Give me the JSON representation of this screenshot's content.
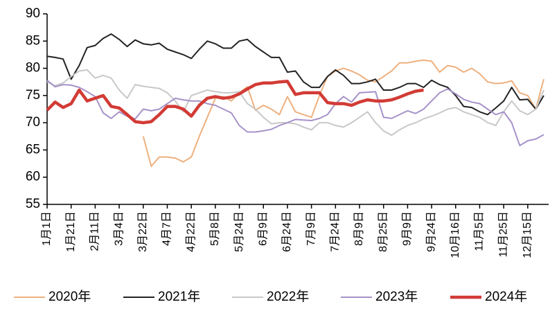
{
  "chart_data": {
    "type": "line",
    "categories": [
      "1月1日",
      null,
      null,
      "1月21日",
      null,
      null,
      "2月11日",
      null,
      null,
      "3月4日",
      null,
      null,
      "3月22日",
      null,
      null,
      "4月7日",
      null,
      null,
      "4月22日",
      null,
      null,
      "5月8日",
      null,
      null,
      "5月24日",
      null,
      null,
      "6月9日",
      null,
      null,
      "6月24日",
      null,
      null,
      "7月9日",
      null,
      null,
      "7月24日",
      null,
      null,
      "8月9日",
      null,
      null,
      "8月25日",
      null,
      null,
      "9月9日",
      null,
      null,
      "9月24日",
      null,
      null,
      "10月16日",
      null,
      null,
      "11月5日",
      null,
      null,
      "11月25日",
      null,
      null,
      "12月15日",
      null,
      null
    ],
    "ylim": [
      55,
      90
    ],
    "yticks": [
      55,
      60,
      65,
      70,
      75,
      80,
      85,
      90
    ],
    "series": [
      {
        "name": "2020年",
        "color": "#eeb07e",
        "width": 2,
        "values": [
          null,
          null,
          null,
          null,
          null,
          null,
          null,
          null,
          null,
          null,
          null,
          null,
          67.5,
          62,
          63.7,
          63.7,
          63.5,
          62.8,
          63.7,
          67.5,
          71,
          74.5,
          74.8,
          74,
          75.5,
          76.6,
          72.3,
          73.2,
          72.5,
          71.5,
          74.8,
          72,
          71.5,
          71,
          75,
          78.5,
          79.5,
          80,
          79.5,
          78.8,
          77.8,
          77.5,
          78.5,
          79.5,
          81,
          81,
          81.3,
          81.5,
          81.3,
          79.3,
          80.5,
          80.2,
          79.3,
          80,
          79,
          77.5,
          77.2,
          77.3,
          77.7,
          75.5,
          75,
          72.5,
          78
        ]
      },
      {
        "name": "2021年",
        "color": "#222222",
        "width": 2,
        "values": [
          82.2,
          82,
          81.7,
          78,
          80.5,
          83.8,
          84.2,
          85.5,
          86.3,
          85.3,
          84,
          85.2,
          84.5,
          84.3,
          84.6,
          83.5,
          83,
          82.5,
          81.8,
          83.5,
          85,
          84.5,
          83.7,
          83.7,
          85,
          85.3,
          84,
          83,
          82,
          82,
          79.3,
          79.5,
          77.5,
          76.5,
          76.5,
          78.5,
          79.7,
          78.7,
          77.2,
          77.2,
          77.5,
          78,
          76,
          76,
          76.5,
          77.2,
          77.2,
          76.5,
          77.8,
          77,
          76.5,
          75,
          73,
          72.8,
          72,
          71.5,
          72.7,
          74,
          76.5,
          74.2,
          74.3,
          72.5,
          75
        ]
      },
      {
        "name": "2022年",
        "color": "#c8c8c8",
        "width": 2,
        "values": [
          77.5,
          76.8,
          77.3,
          78.5,
          79.5,
          79.7,
          78.2,
          78.7,
          78.2,
          76,
          74.5,
          77,
          76.7,
          76.5,
          76.3,
          75.5,
          74,
          72,
          75,
          75.5,
          76,
          75.7,
          75.5,
          75.5,
          75.7,
          73.5,
          72.5,
          71,
          69.8,
          70,
          70,
          69.8,
          69.2,
          68.7,
          70,
          70,
          69.5,
          69.2,
          70,
          71,
          72,
          70,
          68.5,
          67.7,
          68.7,
          69.5,
          70,
          70.7,
          71.2,
          71.8,
          72.5,
          72.8,
          72,
          71.5,
          71,
          70,
          69.5,
          72,
          74,
          72.2,
          71.5,
          72.5,
          76
        ]
      },
      {
        "name": "2023年",
        "color": "#a692c8",
        "width": 2,
        "values": [
          77.8,
          76.6,
          77,
          76.9,
          76.5,
          75.7,
          74.8,
          71.8,
          70.8,
          72,
          71.2,
          70.7,
          72.5,
          72.2,
          72.5,
          73.5,
          74.5,
          74.2,
          74,
          74,
          73.5,
          73.2,
          72.5,
          71.8,
          69.5,
          68.3,
          68.3,
          68.5,
          68.8,
          69.5,
          70,
          70.6,
          70.5,
          70.4,
          70.8,
          71.5,
          73.5,
          74.8,
          73.8,
          75.5,
          75.6,
          75.7,
          71,
          70.8,
          71.5,
          72.2,
          71.7,
          72.5,
          74,
          75.5,
          76.2,
          75.3,
          74.3,
          73.8,
          73.5,
          72.5,
          71.5,
          72,
          70,
          65.8,
          66.7,
          67,
          67.8
        ]
      },
      {
        "name": "2024年",
        "color": "#d23b35",
        "width": 4.5,
        "values": [
          72.3,
          73.8,
          72.8,
          73.5,
          76,
          74,
          74.5,
          75,
          73,
          72.7,
          71.5,
          70.2,
          70,
          70.2,
          71.5,
          73,
          73,
          72.5,
          71.2,
          73.2,
          74.5,
          74.8,
          74.5,
          74.7,
          75.3,
          76.2,
          77,
          77.3,
          77.3,
          77.5,
          77.6,
          75.2,
          75.5,
          75.5,
          75.5,
          73.7,
          73.5,
          73.5,
          73.2,
          73.8,
          74.2,
          74,
          74,
          74.2,
          74.7,
          75.3,
          75.8,
          76,
          null,
          null,
          null,
          null,
          null,
          null,
          null,
          null,
          null,
          null,
          null,
          null,
          null,
          null,
          null
        ]
      }
    ]
  }
}
